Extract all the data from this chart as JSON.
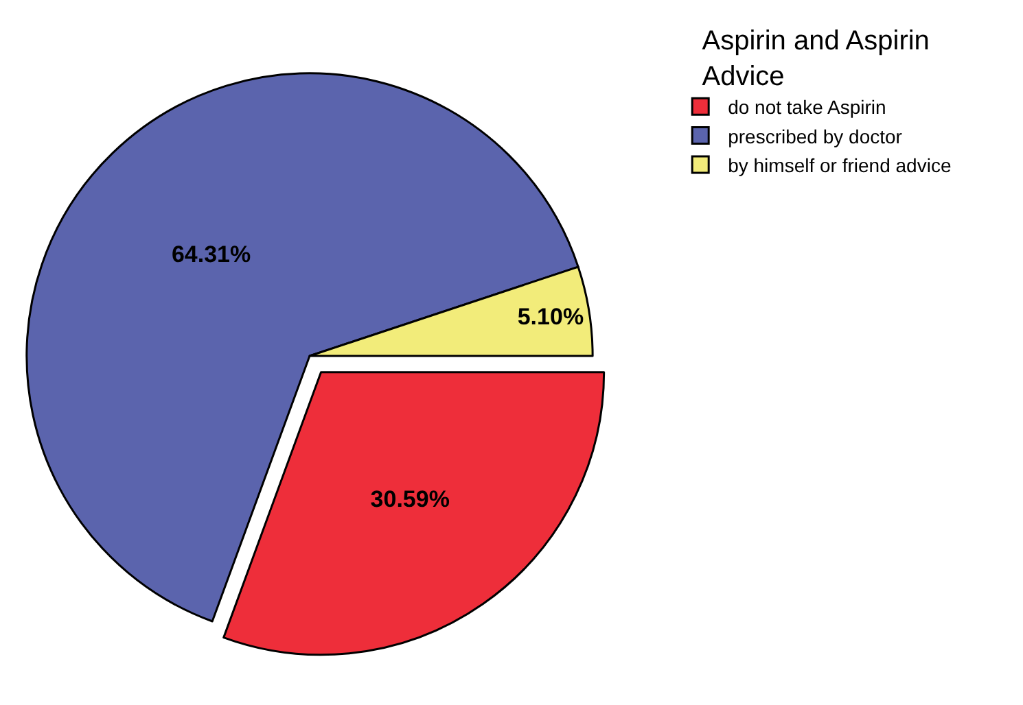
{
  "chart_data": {
    "type": "pie",
    "legend_title": "Aspirin and Aspirin Advice",
    "categories": [
      "do not take Aspirin",
      "prescribed by doctor",
      "by himself or friend advice"
    ],
    "values": [
      30.59,
      64.31,
      5.1
    ],
    "colors": [
      "#ee2e3a",
      "#5b64ad",
      "#f2ec7a"
    ],
    "value_labels": [
      "30.59%",
      "64.31%",
      "5.10%"
    ],
    "legend": "top right"
  }
}
